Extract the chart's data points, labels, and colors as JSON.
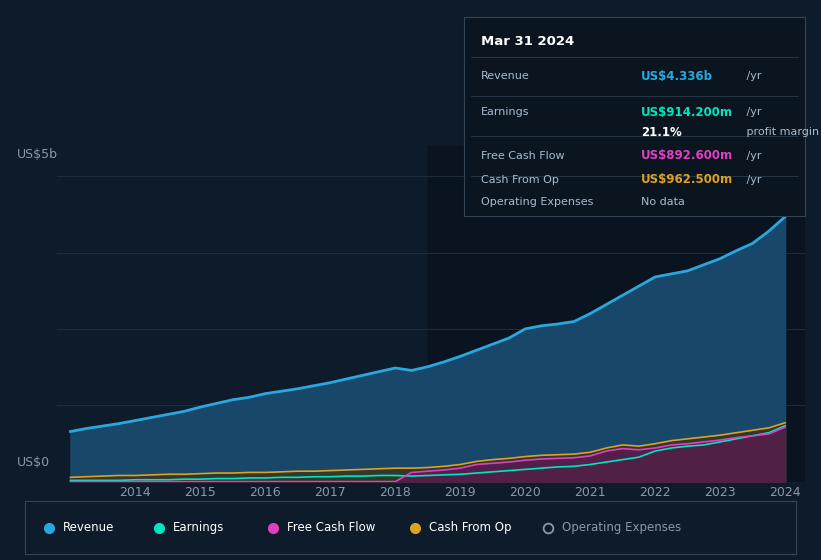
{
  "background_color": "#0d1b2a",
  "plot_bg_color": "#0d1b2a",
  "title": "Mar 31 2024",
  "ylabel": "US$5b",
  "y0_label": "US$0",
  "years": [
    2013.0,
    2013.25,
    2013.5,
    2013.75,
    2014.0,
    2014.25,
    2014.5,
    2014.75,
    2015.0,
    2015.25,
    2015.5,
    2015.75,
    2016.0,
    2016.25,
    2016.5,
    2016.75,
    2017.0,
    2017.25,
    2017.5,
    2017.75,
    2018.0,
    2018.25,
    2018.5,
    2018.75,
    2019.0,
    2019.25,
    2019.5,
    2019.75,
    2020.0,
    2020.25,
    2020.5,
    2020.75,
    2021.0,
    2021.25,
    2021.5,
    2021.75,
    2022.0,
    2022.25,
    2022.5,
    2022.75,
    2023.0,
    2023.25,
    2023.5,
    2023.75,
    2024.0
  ],
  "revenue": [
    0.82,
    0.87,
    0.91,
    0.95,
    1.0,
    1.05,
    1.1,
    1.15,
    1.22,
    1.28,
    1.34,
    1.38,
    1.44,
    1.48,
    1.52,
    1.57,
    1.62,
    1.68,
    1.74,
    1.8,
    1.86,
    1.82,
    1.88,
    1.96,
    2.05,
    2.15,
    2.25,
    2.35,
    2.5,
    2.55,
    2.58,
    2.62,
    2.75,
    2.9,
    3.05,
    3.2,
    3.35,
    3.4,
    3.45,
    3.55,
    3.65,
    3.78,
    3.9,
    4.1,
    4.336
  ],
  "earnings": [
    0.02,
    0.02,
    0.02,
    0.02,
    0.03,
    0.03,
    0.03,
    0.04,
    0.04,
    0.05,
    0.05,
    0.06,
    0.06,
    0.07,
    0.07,
    0.08,
    0.08,
    0.09,
    0.09,
    0.1,
    0.1,
    0.09,
    0.1,
    0.11,
    0.12,
    0.14,
    0.16,
    0.18,
    0.2,
    0.22,
    0.24,
    0.25,
    0.28,
    0.32,
    0.36,
    0.4,
    0.5,
    0.55,
    0.58,
    0.6,
    0.65,
    0.7,
    0.75,
    0.8,
    0.914
  ],
  "free_cash_flow": [
    0.0,
    0.0,
    0.0,
    0.0,
    0.0,
    0.0,
    0.0,
    0.0,
    0.0,
    0.0,
    0.0,
    0.0,
    0.0,
    0.0,
    0.0,
    0.0,
    0.0,
    0.0,
    0.0,
    0.0,
    0.0,
    0.15,
    0.17,
    0.19,
    0.22,
    0.28,
    0.3,
    0.32,
    0.35,
    0.37,
    0.38,
    0.39,
    0.42,
    0.5,
    0.54,
    0.52,
    0.55,
    0.6,
    0.62,
    0.65,
    0.68,
    0.72,
    0.75,
    0.78,
    0.8926
  ],
  "cash_from_op": [
    0.07,
    0.08,
    0.09,
    0.1,
    0.1,
    0.11,
    0.12,
    0.12,
    0.13,
    0.14,
    0.14,
    0.15,
    0.15,
    0.16,
    0.17,
    0.17,
    0.18,
    0.19,
    0.2,
    0.21,
    0.22,
    0.22,
    0.23,
    0.25,
    0.28,
    0.33,
    0.36,
    0.38,
    0.41,
    0.43,
    0.44,
    0.45,
    0.48,
    0.55,
    0.6,
    0.58,
    0.62,
    0.67,
    0.7,
    0.73,
    0.76,
    0.8,
    0.84,
    0.88,
    0.9625
  ],
  "revenue_color": "#29a8e0",
  "revenue_fill": "#1a4a6e",
  "earnings_color": "#00e5c0",
  "earnings_fill": "#1a4a40",
  "fcf_color": "#e040c0",
  "fcf_fill": "#5a1a50",
  "cashop_color": "#e0a020",
  "cashop_fill": "#3a3010",
  "grid_color": "#1e2d3d",
  "tick_color": "#8899aa",
  "tooltip_bg": "#0a1520",
  "highlight_x_start": 2018.5,
  "x_ticks": [
    2014,
    2015,
    2016,
    2017,
    2018,
    2019,
    2020,
    2021,
    2022,
    2023,
    2024
  ],
  "ylim": [
    0,
    5.5
  ],
  "xlim": [
    2012.8,
    2024.3
  ],
  "tooltip_rows": [
    {
      "label": "Revenue",
      "value": "US$4.336b",
      "suffix": " /yr",
      "value_color": "#29a8e0"
    },
    {
      "label": "Earnings",
      "value": "US$914.200m",
      "suffix": " /yr",
      "value_color": "#00e5c0"
    },
    {
      "label": "",
      "value": "21.1%",
      "suffix": " profit margin",
      "value_color": "#ffffff"
    },
    {
      "label": "Free Cash Flow",
      "value": "US$892.600m",
      "suffix": " /yr",
      "value_color": "#e040c0"
    },
    {
      "label": "Cash From Op",
      "value": "US$962.500m",
      "suffix": " /yr",
      "value_color": "#e0a020"
    },
    {
      "label": "Operating Expenses",
      "value": "No data",
      "suffix": "",
      "value_color": "#8899aa"
    }
  ],
  "legend_items": [
    {
      "label": "Revenue",
      "color": "#29a8e0",
      "open": false
    },
    {
      "label": "Earnings",
      "color": "#00e5c0",
      "open": false
    },
    {
      "label": "Free Cash Flow",
      "color": "#e040c0",
      "open": false
    },
    {
      "label": "Cash From Op",
      "color": "#e0a020",
      "open": false
    },
    {
      "label": "Operating Expenses",
      "color": "#8899aa",
      "open": true
    }
  ]
}
